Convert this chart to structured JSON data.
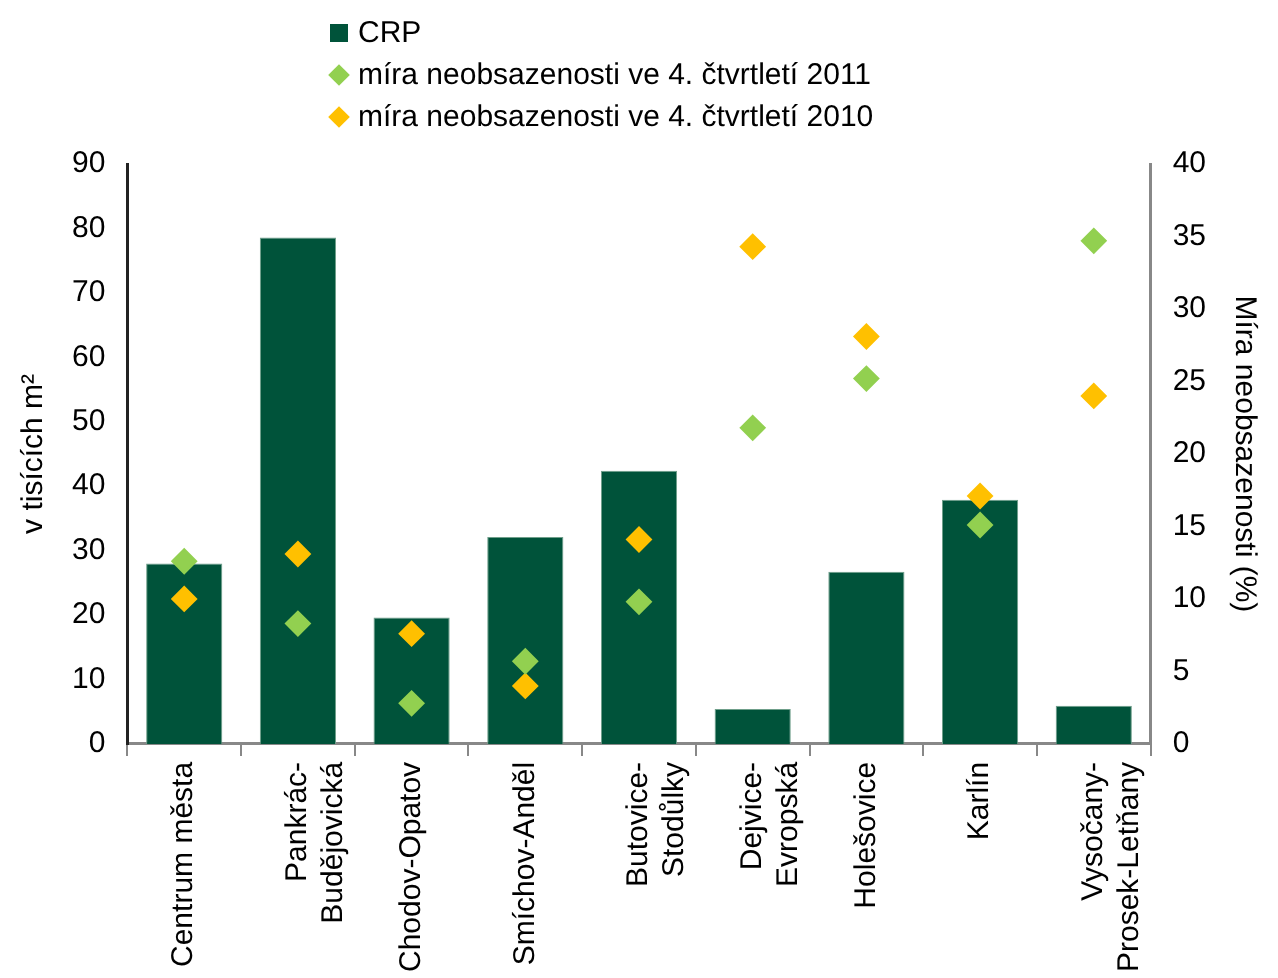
{
  "chart_data": {
    "type": "bar",
    "categories": [
      "Centrum města",
      "Pankrác-Budějovická",
      "Chodov-Opatov",
      "Smíchov-Anděl",
      "Butovice-Stodůlky",
      "Dejvice-Evropská",
      "Holešovice",
      "Karlín",
      "Vysočany-Prosek-Letňany"
    ],
    "ylabel": "v tisících m²",
    "y2label": "Míra neobsazenosti (%)",
    "ylim": [
      0,
      90
    ],
    "yticks": [
      0,
      10,
      20,
      30,
      40,
      50,
      60,
      70,
      80,
      90
    ],
    "y2lim": [
      0,
      40
    ],
    "y2ticks": [
      0,
      5,
      10,
      15,
      20,
      25,
      30,
      35,
      40
    ],
    "grid": false,
    "legend": "top",
    "marker": "diamond",
    "series": [
      {
        "name": "CRP",
        "color": "#00533a",
        "values": [
          28.0,
          78.6,
          19.6,
          32.1,
          42.4,
          5.4,
          26.7,
          37.9,
          5.9
        ]
      },
      {
        "name": "míra neobsazenosti ve 4. čtvrtletí 2011",
        "type": "scatter",
        "axis": "y2",
        "color": "#92d050",
        "values": [
          12.6,
          8.3,
          2.8,
          5.7,
          9.8,
          21.8,
          25.2,
          15.1,
          34.7
        ]
      },
      {
        "name": "míra neobsazenosti ve 4. čtvrtletí 2010",
        "type": "scatter",
        "axis": "y2",
        "color": "#ffc000",
        "values": [
          10.0,
          13.1,
          7.6,
          4.0,
          14.1,
          34.3,
          28.1,
          17.1,
          24.0
        ]
      }
    ]
  }
}
